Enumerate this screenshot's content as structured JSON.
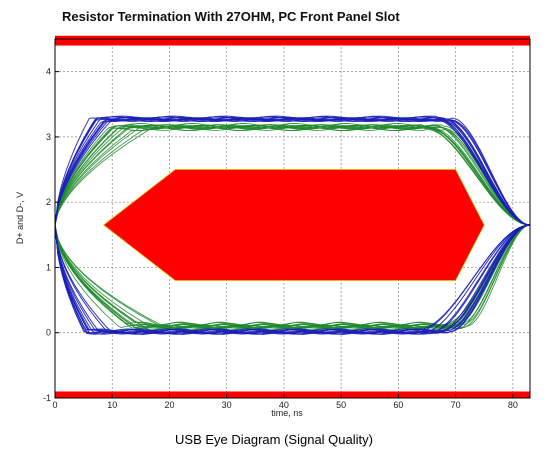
{
  "title": "Resistor Termination With 27OHM, PC Front Panel Slot",
  "caption": "USB Eye Diagram (Signal Quality)",
  "colors": {
    "mask": "#ff0000",
    "trace_blue": "#1b1fb8",
    "trace_green": "#1f8a2a",
    "grid": "#8a8a8a",
    "axis": "#000000"
  },
  "chart_data": {
    "type": "line",
    "title": "Resistor Termination With 27OHM, PC Front Panel Slot",
    "xlabel": "time, ns",
    "ylabel": "D+ and D-, V",
    "xlim": [
      0,
      83
    ],
    "ylim": [
      -1,
      4.5
    ],
    "x_ticks": [
      0,
      10,
      20,
      30,
      40,
      50,
      60,
      70,
      80
    ],
    "y_ticks": [
      -1,
      0,
      1,
      2,
      3,
      4
    ],
    "grid": true,
    "mask_polygon": [
      [
        8.5,
        1.65
      ],
      [
        21,
        2.5
      ],
      [
        70,
        2.5
      ],
      [
        75,
        1.65
      ],
      [
        70,
        0.8
      ],
      [
        21,
        0.8
      ]
    ],
    "upper_limit_band": [
      4.4,
      4.55
    ],
    "lower_limit_band": [
      -1,
      -0.9
    ],
    "series": [
      {
        "color": "blue",
        "high_level_v": 3.28,
        "low_level_v": 0.02,
        "crossing_v": 1.65,
        "crossing_times_ns": [
          0,
          83
        ]
      },
      {
        "color": "green",
        "high_level_v": 3.15,
        "low_level_v": 0.1,
        "crossing_v": 1.65,
        "crossing_times_ns": [
          0,
          83
        ]
      }
    ]
  }
}
